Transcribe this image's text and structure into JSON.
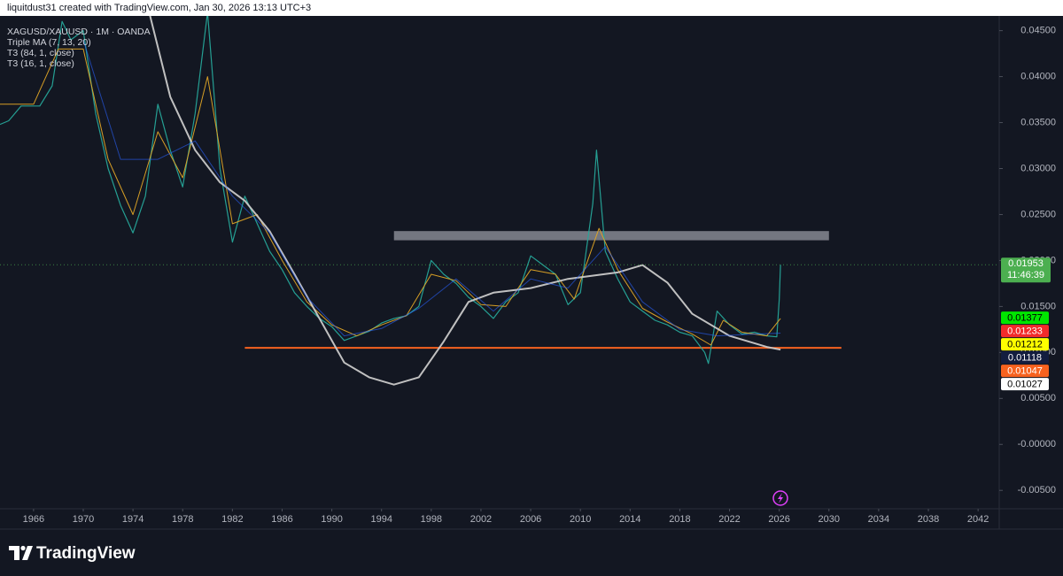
{
  "chart_data": {
    "type": "line",
    "header": "liquitdust31 created with TradingView.com, Jan 30, 2026 13:13 UTC+3",
    "brand": "TradingView",
    "xlim": [
      1963.3,
      2043.7
    ],
    "xticks": [
      1966,
      1970,
      1974,
      1978,
      1982,
      1986,
      1990,
      1994,
      1998,
      2002,
      2006,
      2010,
      2014,
      2018,
      2022,
      2026,
      2030,
      2034,
      2038,
      2042
    ],
    "ylim": [
      -0.007,
      0.0466
    ],
    "yticks": [
      {
        "value": 0.045,
        "label": "0.04500"
      },
      {
        "value": 0.04,
        "label": "0.04000"
      },
      {
        "value": 0.035,
        "label": "0.03500"
      },
      {
        "value": 0.03,
        "label": "0.03000"
      },
      {
        "value": 0.025,
        "label": "0.02500"
      },
      {
        "value": 0.02,
        "label": "0.02000"
      },
      {
        "value": 0.015,
        "label": "0.01500"
      },
      {
        "value": 0.01,
        "label": "0.01000"
      },
      {
        "value": 0.005,
        "label": "0.00500"
      },
      {
        "value": 0,
        "label": "-0.00000"
      },
      {
        "value": -0.005,
        "label": "-0.00500"
      }
    ],
    "series": [
      {
        "name": "XAGUSD/XAUUSD · 1M · OANDA",
        "color": "#26a69a",
        "x": [
          1963.3,
          1964,
          1965,
          1966.5,
          1967.5,
          1968.3,
          1969,
          1970,
          1971,
          1972,
          1973,
          1974,
          1975,
          1976,
          1977,
          1978,
          1979,
          1980,
          1981,
          1982,
          1983,
          1984,
          1985,
          1986,
          1987,
          1988,
          1989,
          1990,
          1991,
          1992,
          1993,
          1994,
          1995,
          1996,
          1997,
          1998,
          1999,
          2000,
          2001,
          2002,
          2003,
          2004,
          2005,
          2006,
          2007,
          2008,
          2009,
          2010,
          2011,
          2011.3,
          2012,
          2013,
          2014,
          2015,
          2016,
          2017,
          2018,
          2019,
          2020,
          2020.3,
          2021,
          2022,
          2023,
          2024,
          2025,
          2025.8,
          2026.0,
          2026.1
        ],
        "values": [
          0.0348,
          0.0352,
          0.0368,
          0.0368,
          0.039,
          0.046,
          0.044,
          0.045,
          0.036,
          0.03,
          0.026,
          0.023,
          0.027,
          0.037,
          0.032,
          0.028,
          0.036,
          0.047,
          0.03,
          0.022,
          0.027,
          0.024,
          0.021,
          0.019,
          0.0165,
          0.015,
          0.0137,
          0.0128,
          0.0113,
          0.0118,
          0.0123,
          0.0132,
          0.0137,
          0.014,
          0.015,
          0.02,
          0.0185,
          0.0175,
          0.016,
          0.015,
          0.0137,
          0.0155,
          0.0165,
          0.0205,
          0.0195,
          0.0185,
          0.0152,
          0.0165,
          0.0262,
          0.032,
          0.021,
          0.018,
          0.0155,
          0.0145,
          0.0135,
          0.013,
          0.0122,
          0.0118,
          0.01,
          0.0088,
          0.0145,
          0.013,
          0.012,
          0.0122,
          0.0118,
          0.0117,
          0.0158,
          0.01953
        ]
      },
      {
        "name": "Triple MA (7, 13, 20)",
        "color": "#e0a526",
        "x": [
          1963.3,
          1966,
          1968,
          1970,
          1972,
          1974,
          1976,
          1978,
          1980,
          1982,
          1984,
          1986,
          1988,
          1990,
          1992,
          1994,
          1996,
          1998,
          2000,
          2002,
          2004,
          2006,
          2008,
          2009.5,
          2011.5,
          2013,
          2015,
          2017,
          2019,
          2020.5,
          2021.5,
          2023,
          2025,
          2026.1
        ],
        "values": [
          0.037,
          0.037,
          0.043,
          0.043,
          0.031,
          0.025,
          0.034,
          0.029,
          0.04,
          0.024,
          0.025,
          0.02,
          0.0155,
          0.013,
          0.0118,
          0.013,
          0.014,
          0.0185,
          0.0178,
          0.0152,
          0.015,
          0.019,
          0.0185,
          0.0158,
          0.0235,
          0.019,
          0.0148,
          0.0133,
          0.012,
          0.0108,
          0.0135,
          0.0122,
          0.0118,
          0.0137
        ]
      },
      {
        "name": "T3 (84, 1, close)",
        "color": "#c9c9c9",
        "x": [
          1975.3,
          1977,
          1979,
          1981,
          1983,
          1985,
          1987,
          1989,
          1991,
          1993,
          1995,
          1997,
          1999,
          2001,
          2003,
          2006,
          2009,
          2013,
          2015,
          2017,
          2019,
          2022,
          2025,
          2026.1
        ],
        "values": [
          0.047,
          0.0378,
          0.032,
          0.0285,
          0.0265,
          0.0232,
          0.0185,
          0.0137,
          0.0089,
          0.0073,
          0.0065,
          0.0073,
          0.0112,
          0.0155,
          0.0165,
          0.017,
          0.018,
          0.0187,
          0.0195,
          0.0176,
          0.0142,
          0.0118,
          0.0106,
          0.0103
        ]
      },
      {
        "name": "T3 (16, 1, close)",
        "color": "#2962ff",
        "x": [
          1970,
          1973,
          1976,
          1979,
          1982,
          1985,
          1988,
          1991,
          1994,
          1997,
          2000,
          2003,
          2006,
          2009,
          2012,
          2015,
          2018,
          2021,
          2024,
          2026.1
        ],
        "values": [
          0.044,
          0.031,
          0.031,
          0.033,
          0.027,
          0.023,
          0.016,
          0.0118,
          0.0126,
          0.0148,
          0.018,
          0.0145,
          0.018,
          0.017,
          0.0215,
          0.0155,
          0.0125,
          0.0118,
          0.012,
          0.0121
        ]
      }
    ],
    "annotations": [
      {
        "type": "rect",
        "x": [
          1995,
          2030
        ],
        "y": [
          0.0222,
          0.0232
        ],
        "color": "#9598a1"
      },
      {
        "type": "hline",
        "x": [
          1983,
          2031
        ],
        "y": 0.0105,
        "color": "#f7621f"
      }
    ],
    "last_price": {
      "value": 0.01953,
      "countdown": "11:46:39",
      "color": "#4caf50"
    },
    "price_labels": [
      {
        "value": 0.01377,
        "color": "#00e600",
        "text": "#000000"
      },
      {
        "value": 0.01233,
        "color": "#f22b2b",
        "text": "#ffffff"
      },
      {
        "value": 0.01212,
        "color": "#ffff00",
        "text": "#000000"
      },
      {
        "value": 0.01118,
        "color": "#131d3f",
        "text": "#ffffff"
      },
      {
        "value": 0.01047,
        "color": "#f7621f",
        "text": "#ffffff"
      },
      {
        "value": 0.01027,
        "color": "#ffffff",
        "text": "#000000"
      }
    ]
  }
}
